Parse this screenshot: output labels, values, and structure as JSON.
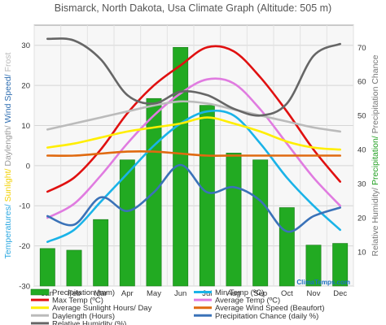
{
  "chart_data": {
    "type": "bar",
    "title": "Bismarck, North Dakota, Usa Climate Graph (Altitude: 505 m)",
    "brand": "ClimaTemps.com",
    "categories": [
      "Jan",
      "Feb",
      "Mar",
      "Apr",
      "May",
      "Jun",
      "Jul",
      "Aug",
      "Sep",
      "Oct",
      "Nov",
      "Dec"
    ],
    "left_axis": {
      "ylim": [
        -30,
        35
      ],
      "ticks": [
        30,
        20,
        10,
        0,
        -10,
        -20,
        -30
      ],
      "label_segments": [
        {
          "text": "Temperatures/ ",
          "color": "#2aa7e0"
        },
        {
          "text": "Sunlight/ ",
          "color": "#f2d000"
        },
        {
          "text": "Daylength/ ",
          "color": "#999999"
        },
        {
          "text": "Wind Speed/ ",
          "color": "#2e6db0"
        },
        {
          "text": "Frost",
          "color": "#bbbbbb"
        }
      ]
    },
    "right_axis": {
      "ylim": [
        0,
        76.5
      ],
      "ticks": [
        70,
        60,
        50,
        40,
        30,
        20,
        10
      ],
      "label_segments": [
        {
          "text": "Relative Humidity/ ",
          "color": "#777777"
        },
        {
          "text": "Precipitation/ ",
          "color": "#22a022"
        },
        {
          "text": "Precipitation Chance",
          "color": "#777777"
        }
      ]
    },
    "grid": true,
    "legend_position": "bottom",
    "series": [
      {
        "name": "Precipitation (mm)",
        "type": "bar",
        "axis": "right",
        "color": "#22aa22",
        "values": [
          11,
          10.5,
          19.5,
          37,
          55,
          70,
          53,
          39,
          37,
          23,
          12,
          12.5
        ]
      },
      {
        "name": "Min Temp (ºC)",
        "type": "line",
        "axis": "left",
        "color": "#1ab3e8",
        "values": [
          -19,
          -16,
          -9,
          -2,
          5,
          10.5,
          13.5,
          12.5,
          5.5,
          -3,
          -10,
          -16
        ]
      },
      {
        "name": "Max Temp (ºC)",
        "type": "line",
        "axis": "left",
        "color": "#e01010",
        "values": [
          -6.5,
          -3,
          4,
          13,
          20,
          25,
          29.5,
          28.5,
          22,
          13.5,
          4,
          -4
        ]
      },
      {
        "name": "Average Temp (ºC)",
        "type": "line",
        "axis": "left",
        "color": "#e07be0",
        "values": [
          -13,
          -9.5,
          -2.5,
          5.5,
          12.5,
          18,
          21.5,
          20.5,
          14,
          5.5,
          -3,
          -10
        ]
      },
      {
        "name": "Average Sunlight Hours/ Day",
        "type": "line",
        "axis": "left",
        "color": "#ffee00",
        "values": [
          4.5,
          5.5,
          7,
          8.5,
          9.5,
          10.5,
          12,
          10.5,
          8.5,
          6,
          4.5,
          4
        ]
      },
      {
        "name": "Average Wind Speed (Beaufort)",
        "type": "line",
        "axis": "left",
        "color": "#e06a10",
        "values": [
          2.5,
          2.5,
          3,
          3.5,
          3.5,
          3,
          2.5,
          2.5,
          2.5,
          2.5,
          2.5,
          2.5
        ]
      },
      {
        "name": "Daylength (Hours)",
        "type": "line",
        "axis": "left",
        "color": "#bbbbbb",
        "values": [
          9,
          10.5,
          12,
          13.5,
          15,
          16,
          15.5,
          14,
          12.5,
          11,
          9.5,
          8.5
        ]
      },
      {
        "name": "Precipitation Chance (daily %)",
        "type": "line",
        "axis": "right",
        "color": "#3a72b8",
        "values": [
          20.5,
          18,
          26,
          22,
          27.5,
          35.5,
          27.5,
          29,
          25,
          16,
          20.5,
          23
        ]
      },
      {
        "name": "Relative Humidity (%)",
        "type": "line",
        "axis": "right",
        "color": "#666666",
        "values": [
          72.5,
          72,
          66.5,
          56,
          53.5,
          57,
          56,
          52,
          50,
          53.5,
          67.5,
          71
        ]
      }
    ]
  }
}
